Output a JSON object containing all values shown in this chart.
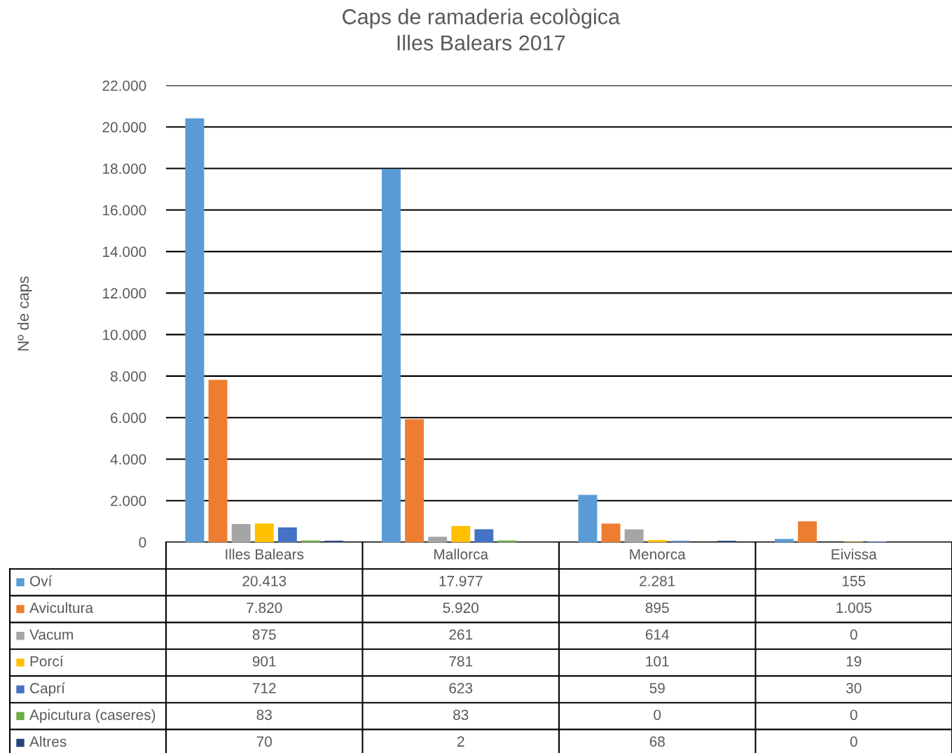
{
  "chart_data": {
    "type": "bar",
    "title": "Caps de ramaderia ecològica\nIlles Balears 2017",
    "ylabel": "Nº de caps",
    "categories": [
      "Illes Balears",
      "Mallorca",
      "Menorca",
      "Eivissa"
    ],
    "series": [
      {
        "name": "Oví",
        "color": "#5b9bd5",
        "values": [
          20413,
          17977,
          2281,
          155
        ],
        "value_labels": [
          "20.413",
          "17.977",
          "2.281",
          "155"
        ]
      },
      {
        "name": "Avicultura",
        "color": "#ed7d31",
        "values": [
          7820,
          5920,
          895,
          1005
        ],
        "value_labels": [
          "7.820",
          "5.920",
          "895",
          "1.005"
        ]
      },
      {
        "name": "Vacum",
        "color": "#a5a5a5",
        "values": [
          875,
          261,
          614,
          0
        ],
        "value_labels": [
          "875",
          "261",
          "614",
          "0"
        ]
      },
      {
        "name": "Porcí",
        "color": "#ffc000",
        "values": [
          901,
          781,
          101,
          19
        ],
        "value_labels": [
          "901",
          "781",
          "101",
          "19"
        ]
      },
      {
        "name": "Caprí",
        "color": "#4472c4",
        "values": [
          712,
          623,
          59,
          30
        ],
        "value_labels": [
          "712",
          "623",
          "59",
          "30"
        ]
      },
      {
        "name": "Apicutura (caseres)",
        "color": "#70ad47",
        "values": [
          83,
          83,
          0,
          0
        ],
        "value_labels": [
          "83",
          "83",
          "0",
          "0"
        ]
      },
      {
        "name": "Altres",
        "color": "#264478",
        "values": [
          70,
          2,
          68,
          0
        ],
        "value_labels": [
          "70",
          "2",
          "68",
          "0"
        ]
      }
    ],
    "ylim": [
      0,
      22000
    ],
    "yticks": [
      0,
      {
        "value": 2000,
        "label": "2.000"
      },
      {
        "value": 4000,
        "label": "4.000"
      },
      {
        "value": 6000,
        "label": "6.000"
      },
      {
        "value": 8000,
        "label": "8.000"
      },
      {
        "value": 10000,
        "label": "10.000"
      },
      {
        "value": 12000,
        "label": "12.000"
      },
      {
        "value": 14000,
        "label": "14.000"
      },
      {
        "value": 16000,
        "label": "16.000"
      },
      {
        "value": 18000,
        "label": "18.000"
      },
      {
        "value": 20000,
        "label": "20.000"
      },
      {
        "value": 22000,
        "label": "22.000"
      }
    ],
    "grid": "y",
    "legend": "bottom left"
  }
}
